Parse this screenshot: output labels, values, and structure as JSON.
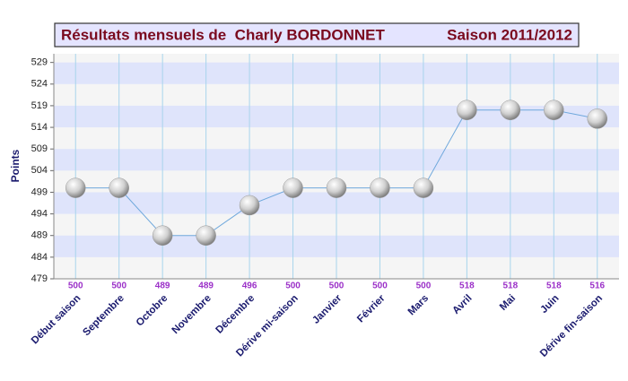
{
  "chart_data": {
    "type": "line",
    "title": "Résultats mensuels de  Charly BORDONNET",
    "subtitle": "Saison 2011/2012",
    "y_label": "Points",
    "categories": [
      "Début saison",
      "Septembre",
      "Octobre",
      "Novembre",
      "Décembre",
      "Dérive mi-saison",
      "Janvier",
      "Février",
      "Mars",
      "Avril",
      "Mai",
      "Juin",
      "Dérive fin-saison"
    ],
    "series": [
      {
        "name": "Points",
        "color": "#6fa8dc",
        "values": [
          500,
          500,
          489,
          489,
          496,
          500,
          500,
          500,
          500,
          518,
          518,
          518,
          516
        ]
      }
    ],
    "ylim": [
      479,
      531
    ],
    "yticks": [
      479,
      484,
      489,
      494,
      499,
      504,
      509,
      514,
      519,
      524,
      529
    ],
    "grid": true
  }
}
